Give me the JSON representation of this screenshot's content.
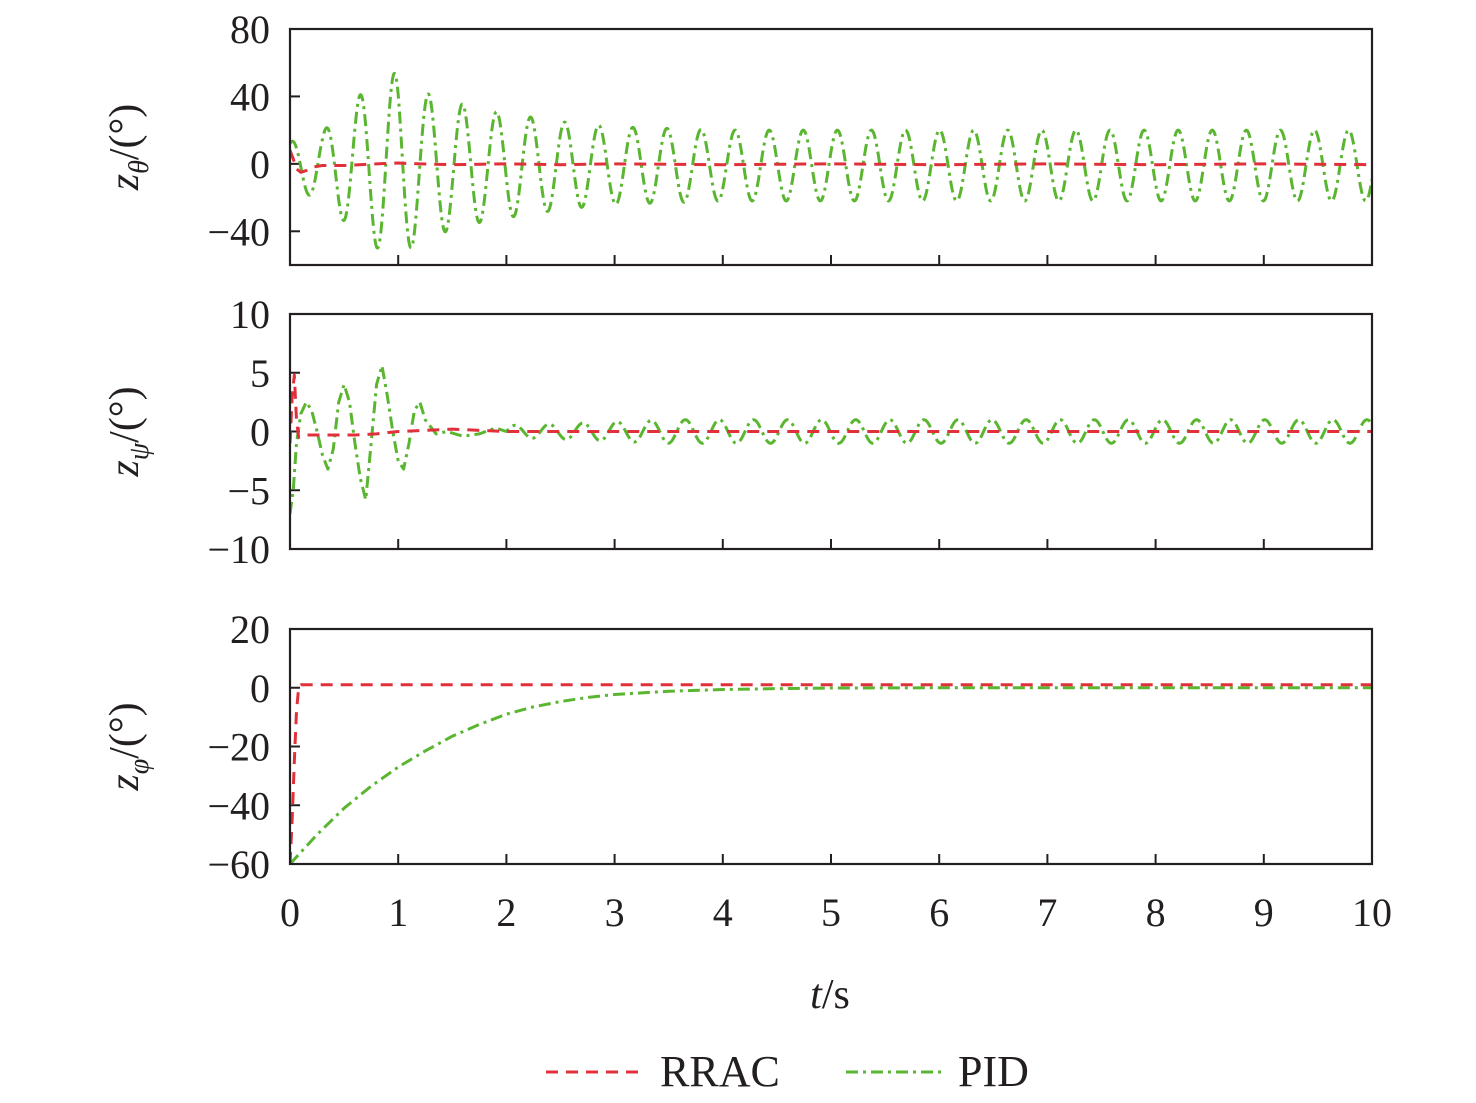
{
  "chart_data": {
    "type": "line",
    "x_label": {
      "var": "t",
      "unit": "/s"
    },
    "x_ticks": [
      "0",
      "1",
      "2",
      "3",
      "4",
      "5",
      "6",
      "7",
      "8",
      "9",
      "10"
    ],
    "xlim": [
      0,
      10
    ],
    "grid": false,
    "legend_position": "bottom-center",
    "legend": [
      {
        "name": "RRAC",
        "color": "#e0303a",
        "style": "dashed"
      },
      {
        "name": "PID",
        "color": "#5ab630",
        "style": "dash-dot"
      }
    ],
    "panels": [
      {
        "id": "z-theta",
        "ylabel": {
          "var": "z",
          "sub": "θ",
          "unit": "/(°)"
        },
        "ylim": [
          -60,
          80
        ],
        "yticks": [
          80,
          40,
          0,
          -40
        ],
        "ytick_labels": [
          "80",
          "40",
          "0",
          "−40"
        ],
        "series": [
          {
            "name": "RRAC",
            "points": [
              [
                0,
                8
              ],
              [
                0.03,
                3
              ],
              [
                0.06,
                -3
              ],
              [
                0.1,
                -5
              ],
              [
                0.15,
                -4
              ],
              [
                0.2,
                -2
              ],
              [
                0.3,
                -1
              ],
              [
                0.5,
                -1
              ],
              [
                0.8,
                0
              ],
              [
                1,
                0.5
              ],
              [
                1.2,
                0
              ],
              [
                1.5,
                -0.5
              ],
              [
                2,
                0
              ],
              [
                2.5,
                -0.5
              ],
              [
                3,
                0
              ],
              [
                4,
                -0.5
              ],
              [
                5,
                0
              ],
              [
                6,
                -0.5
              ],
              [
                7,
                0
              ],
              [
                8,
                -0.5
              ],
              [
                9,
                0
              ],
              [
                10,
                -0.5
              ]
            ]
          },
          {
            "name": "PID",
            "envelope": {
              "t": [
                0,
                0.15,
                0.3,
                0.5,
                0.7,
                1.0,
                1.2,
                1.5,
                1.8,
                2.1,
                2.5,
                3.0,
                4.0,
                10.0
              ],
              "amp": [
                14,
                17,
                20,
                33,
                45,
                56,
                44,
                38,
                33,
                30,
                26,
                23,
                21,
                21
              ]
            },
            "offset": -1,
            "period_s": 0.315,
            "phase_s": 0.06
          }
        ]
      },
      {
        "id": "z-psi",
        "ylabel": {
          "var": "z",
          "sub": "ψ",
          "unit": "/(°)"
        },
        "ylim": [
          -10,
          10
        ],
        "yticks": [
          10,
          5,
          0,
          -5,
          -10
        ],
        "ytick_labels": [
          "10",
          "5",
          "0",
          "−5",
          "−10"
        ],
        "series": [
          {
            "name": "RRAC",
            "points": [
              [
                0,
                -1
              ],
              [
                0.02,
                3
              ],
              [
                0.04,
                4.8
              ],
              [
                0.06,
                1
              ],
              [
                0.08,
                -0.5
              ],
              [
                0.15,
                -0.3
              ],
              [
                0.3,
                -0.3
              ],
              [
                0.6,
                -0.3
              ],
              [
                0.8,
                -0.2
              ],
              [
                1.0,
                0
              ],
              [
                1.5,
                0.2
              ],
              [
                2,
                0
              ],
              [
                3,
                0
              ],
              [
                4,
                0
              ],
              [
                5,
                0
              ],
              [
                6,
                0
              ],
              [
                7,
                0
              ],
              [
                8,
                0
              ],
              [
                9,
                0
              ],
              [
                10,
                0
              ]
            ]
          },
          {
            "name": "PID",
            "points": [
              [
                0,
                -7
              ],
              [
                0.03,
                -5
              ],
              [
                0.06,
                -1
              ],
              [
                0.1,
                1.5
              ],
              [
                0.15,
                2.5
              ],
              [
                0.2,
                1.8
              ],
              [
                0.25,
                0
              ],
              [
                0.3,
                -2
              ],
              [
                0.35,
                -3.2
              ],
              [
                0.4,
                -1.5
              ],
              [
                0.45,
                2.5
              ],
              [
                0.5,
                4
              ],
              [
                0.55,
                2.5
              ],
              [
                0.6,
                -1
              ],
              [
                0.65,
                -4
              ],
              [
                0.7,
                -5.8
              ],
              [
                0.75,
                -1
              ],
              [
                0.8,
                4
              ],
              [
                0.85,
                5.6
              ],
              [
                0.9,
                3
              ],
              [
                0.95,
                0
              ],
              [
                1.0,
                -2.5
              ],
              [
                1.05,
                -3.2
              ],
              [
                1.1,
                -1
              ],
              [
                1.15,
                1.8
              ],
              [
                1.2,
                2.5
              ],
              [
                1.25,
                1
              ],
              [
                1.35,
                -0.2
              ],
              [
                1.45,
                0
              ],
              [
                1.6,
                -0.4
              ],
              [
                1.75,
                -0.2
              ],
              [
                1.9,
                0.3
              ],
              [
                2.0,
                0
              ]
            ],
            "tail": {
              "from": 2.0,
              "to": 10,
              "period_s": 0.315,
              "amp_start": 0.5,
              "amp_end": 1.0,
              "ramp_s": 1.5
            }
          }
        ]
      },
      {
        "id": "z-phi",
        "ylabel": {
          "var": "z",
          "sub": "φ",
          "unit": "/(°)"
        },
        "ylim": [
          -60,
          20
        ],
        "yticks": [
          20,
          0,
          -20,
          -40,
          -60
        ],
        "ytick_labels": [
          "20",
          "0",
          "−20",
          "−40",
          "−60"
        ],
        "series": [
          {
            "name": "RRAC",
            "points": [
              [
                0,
                -60
              ],
              [
                0.02,
                -45
              ],
              [
                0.04,
                -25
              ],
              [
                0.06,
                -8
              ],
              [
                0.08,
                0
              ],
              [
                0.1,
                1
              ],
              [
                0.2,
                1
              ],
              [
                1,
                1
              ],
              [
                2,
                1
              ],
              [
                3,
                1
              ],
              [
                4,
                1
              ],
              [
                5,
                1
              ],
              [
                6,
                1
              ],
              [
                7,
                1
              ],
              [
                8,
                1
              ],
              [
                9,
                1
              ],
              [
                10,
                1
              ]
            ]
          },
          {
            "name": "PID",
            "points": [
              [
                0,
                -60
              ],
              [
                0.25,
                -50
              ],
              [
                0.5,
                -41
              ],
              [
                0.75,
                -33.5
              ],
              [
                1.0,
                -27
              ],
              [
                1.25,
                -21.5
              ],
              [
                1.5,
                -16.5
              ],
              [
                1.75,
                -12.5
              ],
              [
                2.0,
                -9
              ],
              [
                2.25,
                -6.5
              ],
              [
                2.5,
                -4.7
              ],
              [
                2.75,
                -3.3
              ],
              [
                3.0,
                -2.3
              ],
              [
                3.5,
                -1.2
              ],
              [
                4.0,
                -0.6
              ],
              [
                4.5,
                -0.3
              ],
              [
                5.0,
                -0.1
              ],
              [
                6,
                0
              ],
              [
                7,
                0
              ],
              [
                8,
                0
              ],
              [
                9,
                0
              ],
              [
                10,
                0
              ]
            ]
          }
        ]
      }
    ]
  }
}
